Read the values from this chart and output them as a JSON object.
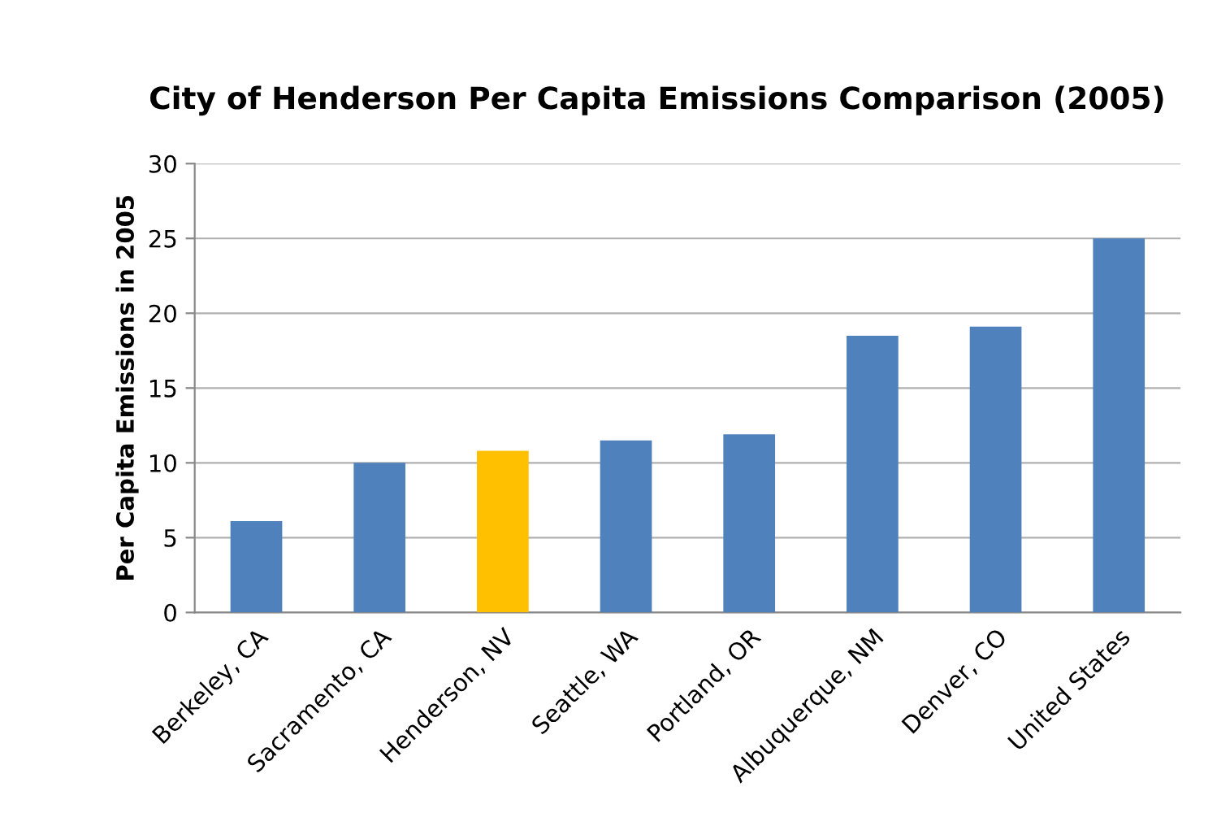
{
  "chart_data": {
    "type": "bar",
    "title": "City of Henderson Per Capita Emissions Comparison (2005)",
    "ylabel": "Per Capita Emissions in 2005",
    "categories": [
      "Berkeley, CA",
      "Sacramento, CA",
      "Henderson, NV",
      "Seattle, WA",
      "Portland, OR",
      "Albuquerque, NM",
      "Denver, CO",
      "United States"
    ],
    "values": [
      6.1,
      10.0,
      10.8,
      11.5,
      11.9,
      18.5,
      19.1,
      25.0
    ],
    "colors": [
      "#4f81bd",
      "#4f81bd",
      "#ffc000",
      "#4f81bd",
      "#4f81bd",
      "#4f81bd",
      "#4f81bd",
      "#4f81bd"
    ],
    "ylim": [
      0,
      30
    ],
    "yticks": [
      0,
      5,
      10,
      15,
      20,
      25,
      30
    ],
    "grid": "y",
    "legend": false
  }
}
